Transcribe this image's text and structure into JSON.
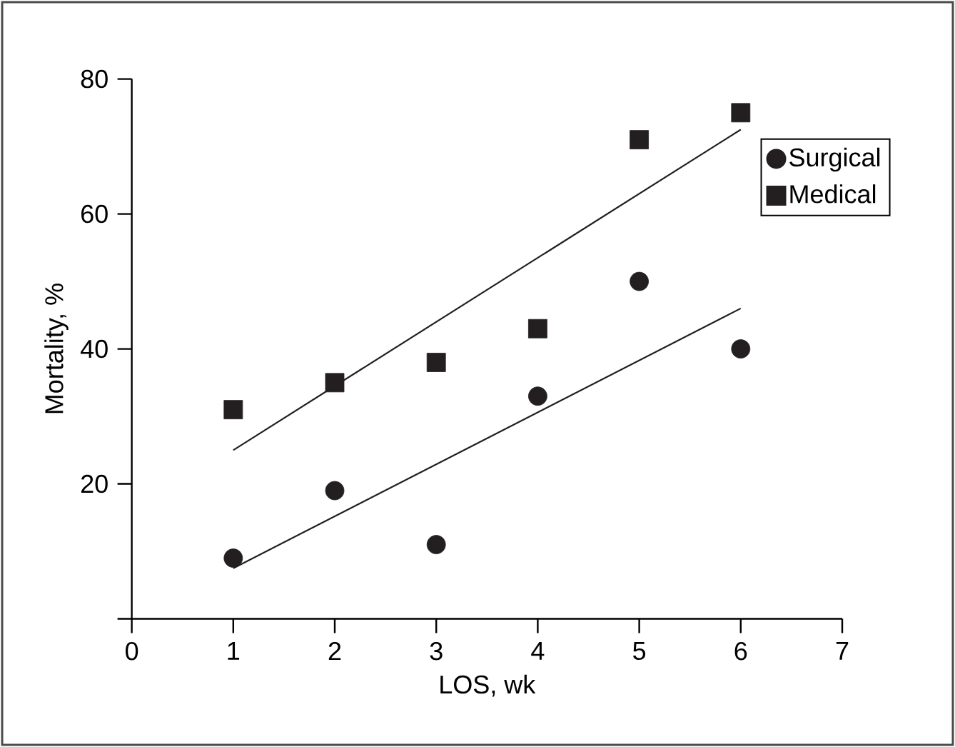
{
  "chart_data": {
    "type": "scatter",
    "xlabel": "LOS, wk",
    "ylabel": "Mortality, %",
    "xlim": [
      0,
      7
    ],
    "ylim": [
      0,
      80
    ],
    "xticks": [
      0,
      1,
      2,
      3,
      4,
      5,
      6,
      7
    ],
    "yticks": [
      {
        "value": 0,
        "label": null
      },
      20,
      40,
      60,
      80
    ],
    "legend": "right",
    "grid": false,
    "series": [
      {
        "name": "Surgical",
        "color": "#231f20",
        "marker": "circle",
        "x": [
          1,
          2,
          3,
          4,
          5,
          6
        ],
        "values": [
          9,
          19,
          11,
          33,
          50,
          40
        ]
      },
      {
        "name": "Medical",
        "color": "#231f20",
        "marker": "square",
        "x": [
          1,
          2,
          3,
          4,
          5,
          6
        ],
        "values": [
          31,
          35,
          38,
          43,
          71,
          75
        ]
      },
      {
        "type": "line",
        "color": "#231f20",
        "marker": "none",
        "line_style": "solid",
        "x": [
          1,
          6
        ],
        "values": [
          7.5,
          46
        ]
      },
      {
        "type": "line",
        "color": "#231f20",
        "marker": "none",
        "line_style": "solid",
        "x": [
          1,
          6
        ],
        "values": [
          25,
          72.5
        ]
      }
    ]
  }
}
